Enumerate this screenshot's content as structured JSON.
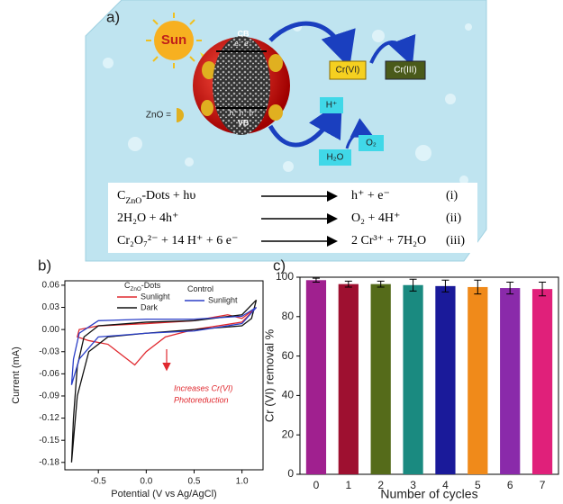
{
  "diagram": {
    "panel_label": "a)",
    "sun": "Sun",
    "cb": "CB",
    "electrons": "e⁻ e⁻",
    "holes": "h⁺ h⁺ h⁺",
    "vb": "VB",
    "zno_legend": "ZnO =",
    "cr6": "Cr(VI)",
    "cr3": "Cr(III)",
    "h_plus": "H⁺",
    "o2": "O₂",
    "h2o": "H₂O",
    "equations": [
      {
        "left": [
          "C",
          "ZnO",
          "-Dots + hυ"
        ],
        "right": "h⁺ + e⁻",
        "label": "(i)"
      },
      {
        "left": [
          "2H₂O + 4h⁺"
        ],
        "right": "O₂ + 4H⁺",
        "label": "(ii)"
      },
      {
        "left": [
          "Cr₂O₇²⁻ + 14 H⁺ + 6 e⁻"
        ],
        "right": "2 Cr³⁺ + 7H₂O",
        "label": "(iii)"
      }
    ]
  },
  "chart_data": [
    {
      "type": "line",
      "panel_label": "b)",
      "xlabel": "Potential (V vs Ag/AgCl)",
      "ylabel": "Current (mA)",
      "xlim": [
        -0.85,
        1.22
      ],
      "ylim": [
        -0.19,
        0.066
      ],
      "xticks": [
        -0.5,
        {
          "value": 0,
          "label": "0.0"
        },
        0.5,
        {
          "value": 1,
          "label": "1.0"
        }
      ],
      "yticks": [
        0.06,
        0.03,
        {
          "value": 0,
          "label": "0.00"
        },
        -0.03,
        -0.06,
        -0.09,
        -0.12,
        -0.15,
        -0.18
      ],
      "legend_group_titles": [
        [
          "C",
          "ZnO",
          "-Dots"
        ],
        [
          "Control"
        ]
      ],
      "annotation": [
        "Increases Cr(VI)",
        "Photoreduction"
      ],
      "series": [
        {
          "name": "Sunlight",
          "color": "#e0282e",
          "x": [
            1.15,
            1.0,
            0.5,
            0.2,
            0.0,
            -0.12,
            -0.25,
            -0.4,
            -0.6,
            -0.72,
            -0.7,
            -0.5,
            0.0,
            0.5,
            0.85,
            1.0,
            1.15
          ],
          "values": [
            0.03,
            0.01,
            0.0,
            -0.01,
            -0.03,
            -0.048,
            -0.035,
            -0.02,
            -0.015,
            -0.01,
            0.0,
            0.005,
            0.008,
            0.012,
            0.02,
            0.015,
            0.03
          ]
        },
        {
          "name": "Dark",
          "color": "#111111",
          "x": [
            1.15,
            1.1,
            1.0,
            0.5,
            0.0,
            -0.4,
            -0.6,
            -0.72,
            -0.78,
            -0.76,
            -0.72,
            -0.65,
            -0.5,
            0.0,
            0.5,
            1.0,
            1.15
          ],
          "values": [
            0.04,
            0.015,
            0.005,
            0.0,
            -0.005,
            -0.01,
            -0.03,
            -0.09,
            -0.18,
            -0.12,
            -0.05,
            -0.01,
            0.005,
            0.01,
            0.012,
            0.02,
            0.04
          ]
        },
        {
          "name": "Sunlight",
          "color": "#2b3fc7",
          "x": [
            1.15,
            1.0,
            0.5,
            0.0,
            -0.5,
            -0.7,
            -0.78,
            -0.76,
            -0.7,
            -0.5,
            0.0,
            0.5,
            1.0,
            1.15
          ],
          "values": [
            0.03,
            0.008,
            -0.002,
            -0.005,
            -0.01,
            -0.04,
            -0.075,
            -0.04,
            -0.005,
            0.012,
            0.014,
            0.014,
            0.018,
            0.03
          ]
        }
      ]
    },
    {
      "type": "bar",
      "panel_label": "c)",
      "xlabel": "Number of cycles",
      "ylabel": "Cr (VI) removal %",
      "categories": [
        "0",
        "1",
        "2",
        "3",
        "4",
        "5",
        "6",
        "7"
      ],
      "values": [
        98.5,
        96.5,
        96.5,
        96,
        95.5,
        95,
        94.5,
        94
      ],
      "errors": [
        1,
        1.5,
        1.5,
        3,
        3,
        3.5,
        3,
        3.5
      ],
      "colors": [
        "#a0208f",
        "#9e1030",
        "#556b1a",
        "#1a8a80",
        "#1a1a9a",
        "#f08a1a",
        "#8a2aaa",
        "#e0207a"
      ],
      "ylim": [
        0,
        100
      ],
      "yticks": [
        0,
        20,
        40,
        60,
        80,
        100
      ]
    }
  ]
}
